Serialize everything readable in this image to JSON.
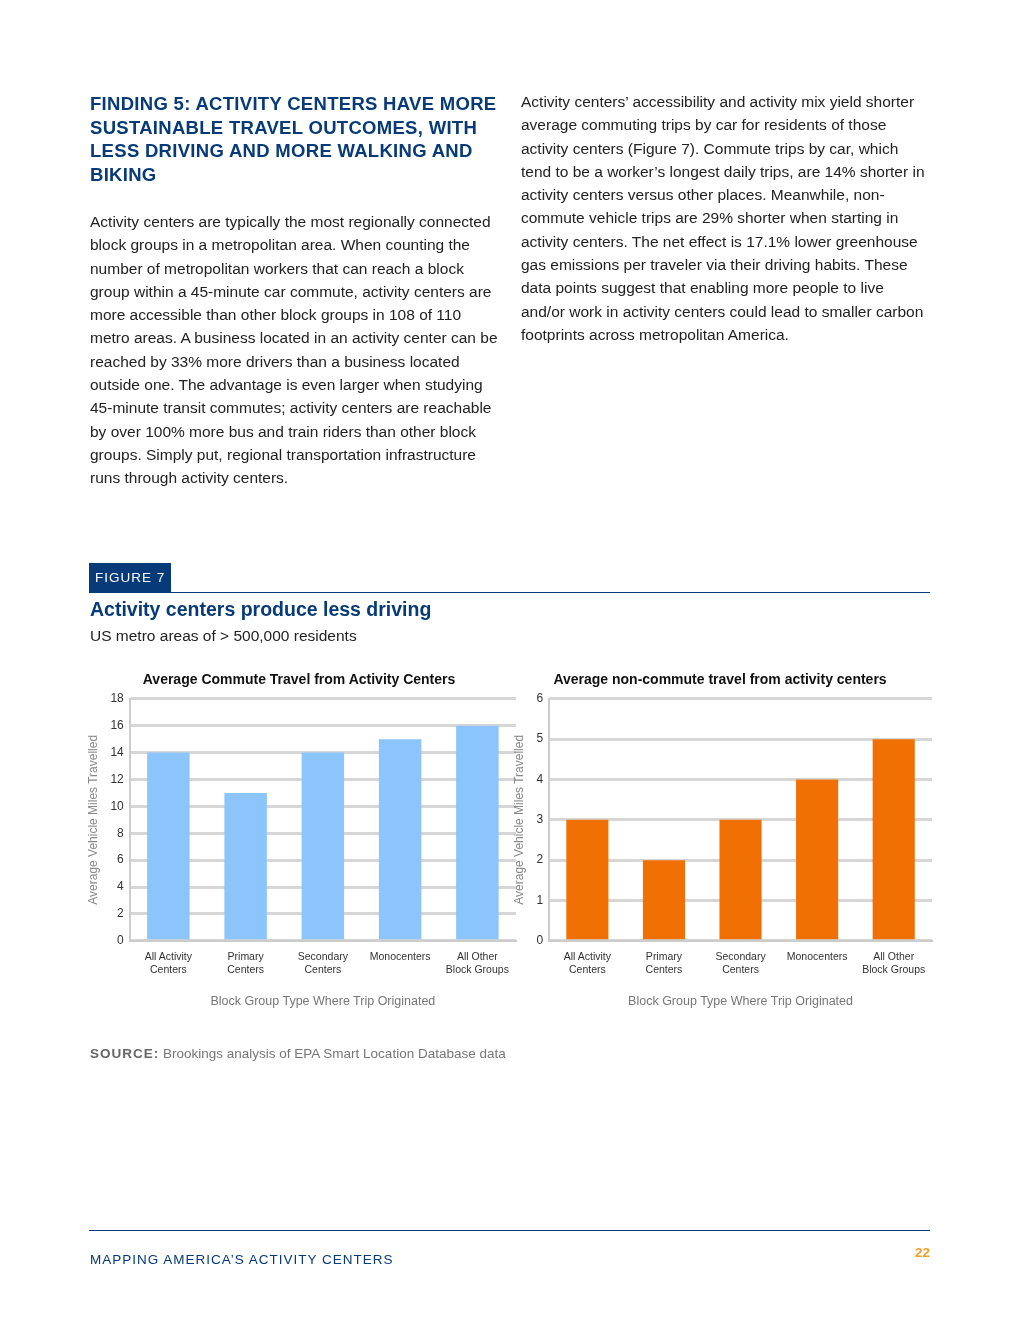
{
  "chart_data": [
    {
      "type": "bar",
      "title": "Average Commute Travel from Activity Centers",
      "xlabel": "Block Group Type Where Trip Originated",
      "ylabel": "Average Vehicle Miles Travelled",
      "categories": [
        "All Activity Centers",
        "Primary Centers",
        "Secondary Centers",
        "Monocenters",
        "All Other Block Groups"
      ],
      "values": [
        14,
        11,
        14,
        15,
        16
      ],
      "color": "#8cc5fb",
      "ylim": [
        0,
        18
      ],
      "yticks": [
        0,
        2,
        4,
        6,
        8,
        10,
        12,
        14,
        16,
        18
      ],
      "grid": "y",
      "legend": false,
      "annotations": [
        "FINDING 5: ACTIVITY CENTERS HAVE MORE SUSTAINABLE TRAVEL OUTCOMES, WITH LESS DRIVING AND MORE WALKING AND BIKING",
        "Activity centers are typically the most regionally connected block groups in a metropolitan area. When counting the number of metropolitan workers that can reach a block group within a 45-minute car commute, activity centers are more accessible than other block groups in 108 of 110 metro areas. A business located in an activity center can be reached by 33% more drivers than a business located outside one. The advantage is even larger when studying 45-minute transit commutes; activity centers are reachable by over 100% more bus and train riders than other block groups. Simply put, regional transportation infrastructure runs through activity centers.",
        "Activity centers’ accessibility and activity mix yield shorter average commuting trips by car for residents of those activity centers (Figure 7). Commute trips by car, which tend to be a worker’s longest daily trips, are 14% shorter in activity centers versus other places. Meanwhile, non-commute vehicle trips are 29% shorter when starting in activity centers. The net effect is 17.1% lower greenhouse gas emissions per traveler via their driving habits. These data points suggest that enabling more people to live and/or work in activity centers could lead to smaller carbon footprints across metropolitan America.",
        "FIGURE 7",
        "Activity centers produce less driving",
        "US metro areas of > 500,000 residents",
        "SOURCE: Brookings analysis of EPA Smart Location Database data",
        "MAPPING AMERICA’S ACTIVITY CENTERS",
        "22"
      ]
    },
    {
      "type": "bar",
      "title": "Average non-commute travel from activity centers",
      "xlabel": "Block Group Type Where Trip Originated",
      "ylabel": "Average Vehicle Miles Travelled",
      "categories": [
        "All Activity Centers",
        "Primary Centers",
        "Secondary Centers",
        "Monocenters",
        "All Other Block Groups"
      ],
      "values": [
        3,
        2,
        3,
        4,
        5
      ],
      "color": "#f07004",
      "ylim": [
        0,
        6
      ],
      "yticks": [
        0,
        1,
        2,
        3,
        4,
        5,
        6
      ],
      "grid": "y",
      "legend": false
    }
  ]
}
